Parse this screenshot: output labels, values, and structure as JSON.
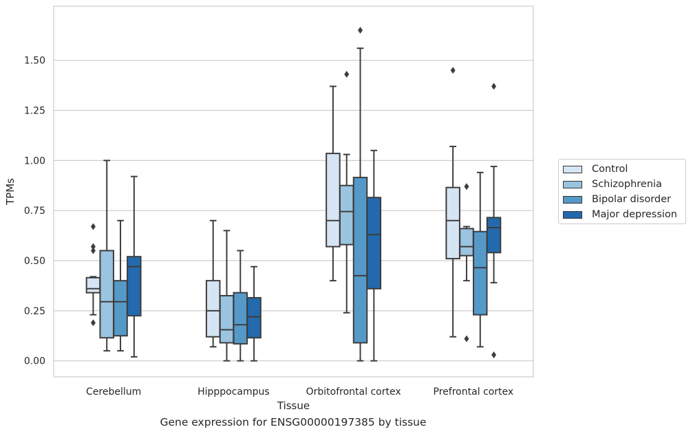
{
  "chart_data": {
    "type": "box",
    "title": "",
    "caption": "Gene expression for ENSG00000197385 by tissue",
    "xlabel": "Tissue",
    "ylabel": "TPMs",
    "ylim": [
      -0.08,
      1.77
    ],
    "yticks": [
      0.0,
      0.25,
      0.5,
      0.75,
      1.0,
      1.25,
      1.5
    ],
    "ytick_labels": [
      "0.00",
      "0.25",
      "0.50",
      "0.75",
      "1.00",
      "1.25",
      "1.50"
    ],
    "grid": true,
    "legend_position": "right",
    "categories": [
      "Cerebellum",
      "Hipppocampus",
      "Orbitofrontal cortex",
      "Prefrontal cortex"
    ],
    "series": [
      {
        "name": "Control",
        "color": "#d6e5f4",
        "boxes": [
          {
            "q1": 0.34,
            "median": 0.36,
            "q3": 0.415,
            "whisker_low": 0.23,
            "whisker_high": 0.42,
            "outliers": [
              0.67,
              0.57,
              0.55,
              0.19
            ]
          },
          {
            "q1": 0.12,
            "median": 0.25,
            "q3": 0.4,
            "whisker_low": 0.07,
            "whisker_high": 0.7,
            "outliers": []
          },
          {
            "q1": 0.57,
            "median": 0.7,
            "q3": 1.035,
            "whisker_low": 0.4,
            "whisker_high": 1.37,
            "outliers": []
          },
          {
            "q1": 0.51,
            "median": 0.7,
            "q3": 0.865,
            "whisker_low": 0.12,
            "whisker_high": 1.07,
            "outliers": [
              1.45
            ]
          }
        ]
      },
      {
        "name": "Schizophrenia",
        "color": "#9ac4df",
        "boxes": [
          {
            "q1": 0.115,
            "median": 0.295,
            "q3": 0.55,
            "whisker_low": 0.05,
            "whisker_high": 1.0,
            "outliers": []
          },
          {
            "q1": 0.09,
            "median": 0.155,
            "q3": 0.325,
            "whisker_low": 0.0,
            "whisker_high": 0.65,
            "outliers": []
          },
          {
            "q1": 0.58,
            "median": 0.745,
            "q3": 0.875,
            "whisker_low": 0.24,
            "whisker_high": 1.03,
            "outliers": [
              1.43
            ]
          },
          {
            "q1": 0.525,
            "median": 0.57,
            "q3": 0.66,
            "whisker_low": 0.4,
            "whisker_high": 0.67,
            "outliers": [
              0.87,
              0.11
            ]
          }
        ]
      },
      {
        "name": "Bipolar disorder",
        "color": "#5599c8",
        "boxes": [
          {
            "q1": 0.125,
            "median": 0.295,
            "q3": 0.4,
            "whisker_low": 0.05,
            "whisker_high": 0.7,
            "outliers": []
          },
          {
            "q1": 0.085,
            "median": 0.18,
            "q3": 0.34,
            "whisker_low": 0.0,
            "whisker_high": 0.55,
            "outliers": []
          },
          {
            "q1": 0.09,
            "median": 0.425,
            "q3": 0.915,
            "whisker_low": 0.0,
            "whisker_high": 1.56,
            "outliers": [
              1.65
            ]
          },
          {
            "q1": 0.23,
            "median": 0.465,
            "q3": 0.645,
            "whisker_low": 0.07,
            "whisker_high": 0.94,
            "outliers": []
          }
        ]
      },
      {
        "name": "Major depression",
        "color": "#2369ad",
        "boxes": [
          {
            "q1": 0.225,
            "median": 0.47,
            "q3": 0.52,
            "whisker_low": 0.02,
            "whisker_high": 0.92,
            "outliers": []
          },
          {
            "q1": 0.115,
            "median": 0.22,
            "q3": 0.315,
            "whisker_low": 0.0,
            "whisker_high": 0.47,
            "outliers": []
          },
          {
            "q1": 0.36,
            "median": 0.63,
            "q3": 0.815,
            "whisker_low": 0.0,
            "whisker_high": 1.05,
            "outliers": []
          },
          {
            "q1": 0.54,
            "median": 0.665,
            "q3": 0.715,
            "whisker_low": 0.39,
            "whisker_high": 0.97,
            "outliers": [
              1.37,
              0.03
            ]
          }
        ]
      }
    ]
  }
}
